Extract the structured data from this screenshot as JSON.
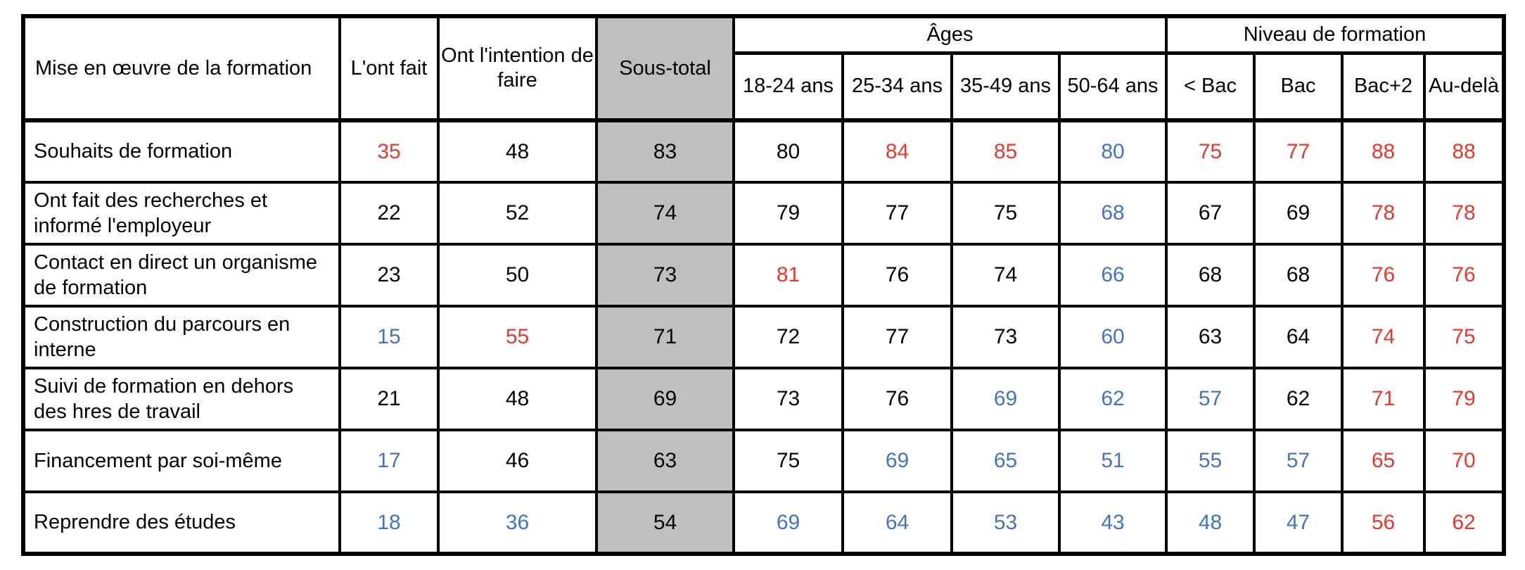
{
  "palette": {
    "red": "#e8382d",
    "blue": "#4472c4",
    "black": "#000000",
    "subtotal_bg": "#bfbfbf",
    "border": "#000000",
    "background": "#ffffff"
  },
  "chart_data": {
    "type": "table",
    "title": "Mise en œuvre de la formation",
    "legend_note_colors": {
      "red_means": "value shown in red in source table",
      "blue_means": "value shown in blue in source table"
    },
    "header": {
      "label_col": "Mise en œuvre de la formation",
      "static_cols": [
        "L'ont fait",
        "Ont l'intention de faire",
        "Sous-total"
      ],
      "groups": [
        {
          "label": "Âges",
          "cols": [
            "18-24 ans",
            "25-34 ans",
            "35-49 ans",
            "50-64 ans"
          ]
        },
        {
          "label": "Niveau de formation",
          "cols": [
            "< Bac",
            "Bac",
            "Bac+2",
            "Au-delà"
          ]
        }
      ]
    },
    "columns_flat": [
      "L'ont fait",
      "Ont l'intention de faire",
      "Sous-total",
      "18-24 ans",
      "25-34 ans",
      "35-49 ans",
      "50-64 ans",
      "< Bac",
      "Bac",
      "Bac+2",
      "Au-delà"
    ],
    "rows": [
      {
        "label": "Souhaits de formation",
        "cells": [
          {
            "v": "35",
            "c": "red"
          },
          {
            "v": "48",
            "c": "black"
          },
          {
            "v": "83",
            "c": "black"
          },
          {
            "v": "80",
            "c": "black"
          },
          {
            "v": "84",
            "c": "red"
          },
          {
            "v": "85",
            "c": "red"
          },
          {
            "v": "80",
            "c": "blue"
          },
          {
            "v": "75",
            "c": "red"
          },
          {
            "v": "77",
            "c": "red"
          },
          {
            "v": "88",
            "c": "red"
          },
          {
            "v": "88",
            "c": "red"
          }
        ]
      },
      {
        "label": "Ont fait des recherches et\ninformé l'employeur",
        "cells": [
          {
            "v": "22",
            "c": "black"
          },
          {
            "v": "52",
            "c": "black"
          },
          {
            "v": "74",
            "c": "black"
          },
          {
            "v": "79",
            "c": "black"
          },
          {
            "v": "77",
            "c": "black"
          },
          {
            "v": "75",
            "c": "black"
          },
          {
            "v": "68",
            "c": "blue"
          },
          {
            "v": "67",
            "c": "black"
          },
          {
            "v": "69",
            "c": "black"
          },
          {
            "v": "78",
            "c": "red"
          },
          {
            "v": "78",
            "c": "red"
          }
        ]
      },
      {
        "label": "Contact en direct un organisme\nde formation",
        "cells": [
          {
            "v": "23",
            "c": "black"
          },
          {
            "v": "50",
            "c": "black"
          },
          {
            "v": "73",
            "c": "black"
          },
          {
            "v": "81",
            "c": "red"
          },
          {
            "v": "76",
            "c": "black"
          },
          {
            "v": "74",
            "c": "black"
          },
          {
            "v": "66",
            "c": "blue"
          },
          {
            "v": "68",
            "c": "black"
          },
          {
            "v": "68",
            "c": "black"
          },
          {
            "v": "76",
            "c": "red"
          },
          {
            "v": "76",
            "c": "red"
          }
        ]
      },
      {
        "label": "Construction du parcours en\ninterne",
        "cells": [
          {
            "v": "15",
            "c": "blue"
          },
          {
            "v": "55",
            "c": "red"
          },
          {
            "v": "71",
            "c": "black"
          },
          {
            "v": "72",
            "c": "black"
          },
          {
            "v": "77",
            "c": "black"
          },
          {
            "v": "73",
            "c": "black"
          },
          {
            "v": "60",
            "c": "blue"
          },
          {
            "v": "63",
            "c": "black"
          },
          {
            "v": "64",
            "c": "black"
          },
          {
            "v": "74",
            "c": "red"
          },
          {
            "v": "75",
            "c": "red"
          }
        ]
      },
      {
        "label": "Suivi de formation en dehors\ndes hres de travail",
        "cells": [
          {
            "v": "21",
            "c": "black"
          },
          {
            "v": "48",
            "c": "black"
          },
          {
            "v": "69",
            "c": "black"
          },
          {
            "v": "73",
            "c": "black"
          },
          {
            "v": "76",
            "c": "black"
          },
          {
            "v": "69",
            "c": "blue"
          },
          {
            "v": "62",
            "c": "blue"
          },
          {
            "v": "57",
            "c": "blue"
          },
          {
            "v": "62",
            "c": "black"
          },
          {
            "v": "71",
            "c": "red"
          },
          {
            "v": "79",
            "c": "red"
          }
        ]
      },
      {
        "label": "Financement par soi-même",
        "cells": [
          {
            "v": "17",
            "c": "blue"
          },
          {
            "v": "46",
            "c": "black"
          },
          {
            "v": "63",
            "c": "black"
          },
          {
            "v": "75",
            "c": "black"
          },
          {
            "v": "69",
            "c": "blue"
          },
          {
            "v": "65",
            "c": "blue"
          },
          {
            "v": "51",
            "c": "blue"
          },
          {
            "v": "55",
            "c": "blue"
          },
          {
            "v": "57",
            "c": "blue"
          },
          {
            "v": "65",
            "c": "red"
          },
          {
            "v": "70",
            "c": "red"
          }
        ]
      },
      {
        "label": "Reprendre des études",
        "cells": [
          {
            "v": "18",
            "c": "blue"
          },
          {
            "v": "36",
            "c": "blue"
          },
          {
            "v": "54",
            "c": "black"
          },
          {
            "v": "69",
            "c": "blue"
          },
          {
            "v": "64",
            "c": "blue"
          },
          {
            "v": "53",
            "c": "blue"
          },
          {
            "v": "43",
            "c": "blue"
          },
          {
            "v": "48",
            "c": "blue"
          },
          {
            "v": "47",
            "c": "blue"
          },
          {
            "v": "56",
            "c": "red"
          },
          {
            "v": "62",
            "c": "red"
          }
        ]
      }
    ]
  }
}
